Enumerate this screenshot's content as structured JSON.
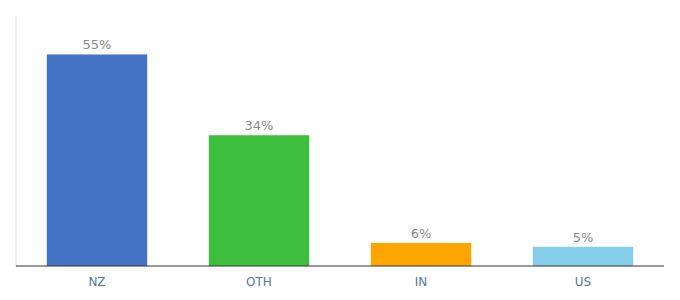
{
  "chart_data": {
    "type": "bar",
    "categories": [
      "NZ",
      "OTH",
      "IN",
      "US"
    ],
    "values": [
      55,
      34,
      6,
      5
    ],
    "value_labels": [
      "55%",
      "34%",
      "6%",
      "5%"
    ],
    "colors": [
      "#4472C4",
      "#3DBF3D",
      "#FFA500",
      "#87CEEB"
    ],
    "ylim": [
      0,
      65
    ],
    "data_labels": true,
    "tick_labels": "x",
    "grid": false
  }
}
